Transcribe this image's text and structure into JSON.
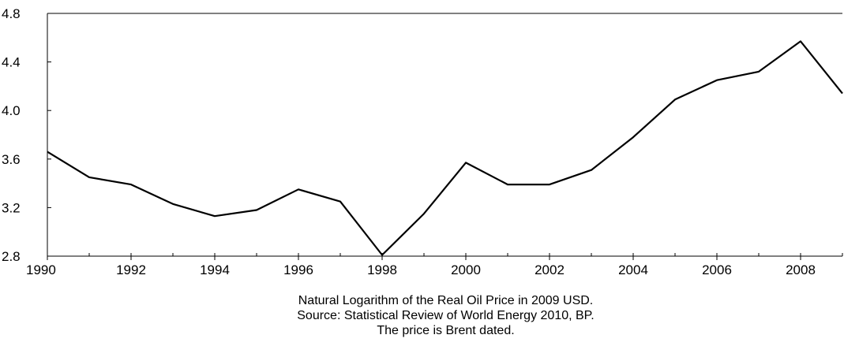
{
  "chart_data": {
    "type": "line",
    "title": "",
    "xlabel": "",
    "ylabel": "",
    "xlim": [
      1990,
      2009
    ],
    "ylim": [
      2.8,
      4.8
    ],
    "x_ticks": [
      1990,
      1992,
      1994,
      1996,
      1998,
      2000,
      2002,
      2004,
      2006,
      2008
    ],
    "x_minor_ticks": [
      1990,
      1991,
      1992,
      1993,
      1994,
      1995,
      1996,
      1997,
      1998,
      1999,
      2000,
      2001,
      2002,
      2003,
      2004,
      2005,
      2006,
      2007,
      2008,
      2009
    ],
    "y_ticks": [
      "2.8",
      "3.2",
      "3.6",
      "4.0",
      "4.4",
      "4.8"
    ],
    "grid": false,
    "legend": "none",
    "line_color": "#000000",
    "series": [
      {
        "x": [
          1990,
          1991,
          1992,
          1993,
          1994,
          1995,
          1996,
          1997,
          1998,
          1999,
          2000,
          2001,
          2002,
          2003,
          2004,
          2005,
          2006,
          2007,
          2008,
          2009
        ],
        "values": [
          3.66,
          3.45,
          3.39,
          3.23,
          3.13,
          3.18,
          3.35,
          3.25,
          2.81,
          3.15,
          3.57,
          3.39,
          3.39,
          3.51,
          3.78,
          4.09,
          4.25,
          4.32,
          4.57,
          4.14
        ]
      }
    ]
  },
  "caption": {
    "line1": "Natural Logarithm of the Real Oil Price in 2009 USD.",
    "line2": "Source: Statistical Review of World Energy 2010, BP.",
    "line3": "The price is Brent dated."
  }
}
